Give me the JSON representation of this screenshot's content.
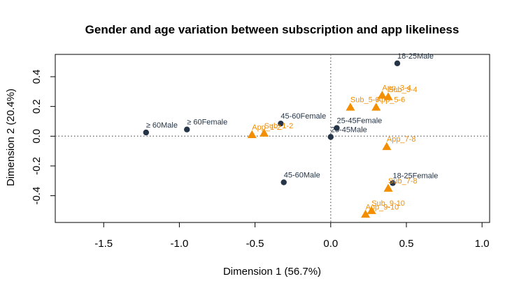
{
  "chart_data": {
    "type": "scatter",
    "title": "Gender and age variation between subscription and app likeliness",
    "xlabel": "Dimension 1 (56.7%)",
    "ylabel": "Dimension 2 (20.4%)",
    "xlim": [
      -1.82,
      1.05
    ],
    "ylim": [
      -0.58,
      0.55
    ],
    "xticks": [
      -1.5,
      -1.0,
      -0.5,
      0.0,
      0.5,
      1.0
    ],
    "xtick_labels": [
      "-1.5",
      "-1.0",
      "-0.5",
      "0.0",
      "0.5",
      "1.0"
    ],
    "yticks": [
      -0.4,
      -0.2,
      0.0,
      0.2,
      0.4
    ],
    "ytick_labels": [
      "-0.4",
      "-0.2",
      "0.0",
      "0.2",
      "0.4"
    ],
    "reference_lines": {
      "x": 0,
      "y": 0,
      "style": "dotted"
    },
    "grid": false,
    "legend": "none",
    "colors": {
      "row_points": "#253447",
      "column_points": "#f28e00"
    },
    "series": [
      {
        "marker": "circle",
        "color": "#253447",
        "points": [
          {
            "label": "18-25Male",
            "x": 0.44,
            "y": 0.49
          },
          {
            "label": "≥ 60Female",
            "x": -0.95,
            "y": 0.045
          },
          {
            "label": "45-60Female",
            "x": -0.33,
            "y": 0.085
          },
          {
            "label": "25-45Female",
            "x": 0.04,
            "y": 0.055
          },
          {
            "label": "25-45Male",
            "x": 0.0,
            "y": -0.005
          },
          {
            "label": "≥ 60Male",
            "x": -1.22,
            "y": 0.025
          },
          {
            "label": "45-60Male",
            "x": -0.31,
            "y": -0.31
          },
          {
            "label": "18-25Female",
            "x": 0.41,
            "y": -0.315
          }
        ]
      },
      {
        "marker": "triangle",
        "color": "#f28e00",
        "points": [
          {
            "label": "App_3-4",
            "x": 0.34,
            "y": 0.275
          },
          {
            "label": "Sub_3-4",
            "x": 0.38,
            "y": 0.265
          },
          {
            "label": "Sub_5-6",
            "x": 0.13,
            "y": 0.195
          },
          {
            "label": "App_5-6",
            "x": 0.3,
            "y": 0.195
          },
          {
            "label": "App_1-2",
            "x": -0.52,
            "y": 0.01
          },
          {
            "label": "Sub_1-2",
            "x": -0.44,
            "y": 0.02
          },
          {
            "label": "App_7-8",
            "x": 0.37,
            "y": -0.07
          },
          {
            "label": "Sub_7-8",
            "x": 0.38,
            "y": -0.35
          },
          {
            "label": "Sub_9-10",
            "x": 0.27,
            "y": -0.5
          },
          {
            "label": "App_9-10",
            "x": 0.23,
            "y": -0.525
          }
        ]
      }
    ]
  }
}
